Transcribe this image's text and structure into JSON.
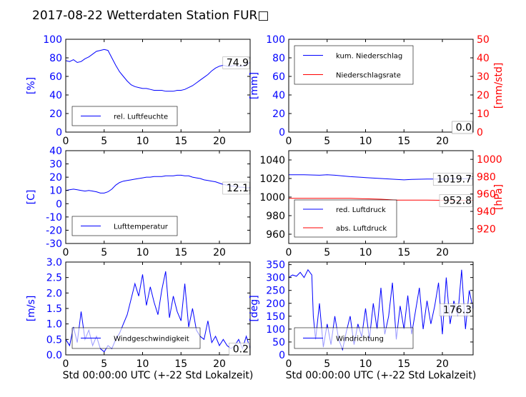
{
  "title": "2017-08-22 Wetterdaten Station FUR□",
  "colors": {
    "primary": "#0000ff",
    "secondary": "#ff0000",
    "axis": "#000000"
  },
  "chart_data": [
    {
      "id": "humidity",
      "type": "line",
      "ylabel": "[%]",
      "xlim": [
        0,
        24
      ],
      "ylim": [
        0,
        100
      ],
      "xticks": [
        0,
        5,
        10,
        15,
        20
      ],
      "yticks": [
        0,
        20,
        40,
        60,
        80,
        100
      ],
      "legend": {
        "position": "lower-left",
        "entries": [
          "rel. Luftfeuchte"
        ]
      },
      "last_value_label": "74.9",
      "series": [
        {
          "name": "rel. Luftfeuchte",
          "color": "#0000ff",
          "x": [
            0,
            0.5,
            1,
            1.5,
            2,
            2.5,
            3,
            3.5,
            4,
            4.5,
            5,
            5.5,
            6,
            6.5,
            7,
            7.5,
            8,
            8.5,
            9,
            9.5,
            10,
            10.5,
            11,
            11.5,
            12,
            12.5,
            13,
            13.5,
            14,
            14.5,
            15,
            15.5,
            16,
            16.5,
            17,
            17.5,
            18,
            18.5,
            19,
            19.5,
            20,
            20.5,
            21,
            21.5,
            22,
            22.5,
            23,
            23.5,
            24
          ],
          "y": [
            77,
            76,
            78,
            75,
            76,
            79,
            81,
            84,
            87,
            88,
            89,
            88,
            80,
            72,
            65,
            60,
            55,
            51,
            49,
            48,
            47,
            47,
            46,
            45,
            45,
            45,
            44,
            44,
            44,
            45,
            45,
            46,
            48,
            50,
            53,
            56,
            59,
            62,
            66,
            69,
            71,
            72,
            71,
            71,
            72,
            71,
            71,
            73,
            75
          ]
        }
      ]
    },
    {
      "id": "precipitation",
      "type": "line",
      "ylabel": "[mm]",
      "y2label": "[mm/std]",
      "xlim": [
        0,
        24
      ],
      "ylim": [
        0,
        100
      ],
      "y2lim": [
        0,
        50
      ],
      "xticks": [
        0,
        5,
        10,
        15,
        20
      ],
      "yticks": [
        0,
        20,
        40,
        60,
        80,
        100
      ],
      "y2ticks": [
        0,
        10,
        20,
        30,
        40,
        50
      ],
      "legend": {
        "position": "upper-left",
        "entries": [
          "kum. Niederschlag",
          "Niederschlagsrate"
        ]
      },
      "last_value_label": "0.0",
      "last_value_label_2": "0.0",
      "series": [
        {
          "name": "kum. Niederschlag",
          "color": "#0000ff",
          "axis": "left",
          "x": [
            0,
            24
          ],
          "y": [
            0,
            0
          ]
        },
        {
          "name": "Niederschlagsrate",
          "color": "#ff0000",
          "axis": "right",
          "x": [
            0,
            24
          ],
          "y": [
            0,
            0
          ]
        }
      ]
    },
    {
      "id": "temperature",
      "type": "line",
      "ylabel": "[C]",
      "xlim": [
        0,
        24
      ],
      "ylim": [
        -30,
        40
      ],
      "xticks": [
        0,
        5,
        10,
        15,
        20
      ],
      "yticks": [
        -30,
        -20,
        -10,
        0,
        10,
        20,
        30,
        40
      ],
      "legend": {
        "position": "lower-left",
        "entries": [
          "Lufttemperatur"
        ]
      },
      "last_value_label": "12.1",
      "series": [
        {
          "name": "Lufttemperatur",
          "color": "#0000ff",
          "x": [
            0,
            0.5,
            1,
            1.5,
            2,
            2.5,
            3,
            3.5,
            4,
            4.5,
            5,
            5.5,
            6,
            6.5,
            7,
            7.5,
            8,
            8.5,
            9,
            9.5,
            10,
            10.5,
            11,
            11.5,
            12,
            12.5,
            13,
            13.5,
            14,
            14.5,
            15,
            15.5,
            16,
            16.5,
            17,
            17.5,
            18,
            18.5,
            19,
            19.5,
            20,
            20.5,
            21,
            21.5,
            22,
            22.5,
            23,
            23.5,
            24
          ],
          "y": [
            10,
            10.5,
            11,
            10.5,
            10,
            9.5,
            10,
            9.5,
            9,
            8,
            8,
            9,
            11,
            14,
            16,
            17,
            17.5,
            18,
            18.5,
            19,
            19.5,
            20,
            20,
            20.5,
            20.5,
            20.5,
            21,
            21,
            21,
            21.5,
            21.5,
            21,
            21,
            20,
            19.5,
            19,
            18,
            17.5,
            17,
            16.5,
            15.5,
            14.5,
            14,
            13.5,
            13,
            12.5,
            12.5,
            12,
            12
          ]
        }
      ]
    },
    {
      "id": "pressure",
      "type": "line",
      "y2label": "[hPa]",
      "xlim": [
        0,
        24
      ],
      "ylim": [
        950,
        1050
      ],
      "y2lim": [
        903,
        1010
      ],
      "xticks": [
        0,
        5,
        10,
        15,
        20
      ],
      "yticks": [
        960,
        980,
        1000,
        1020,
        1040
      ],
      "y2ticks": [
        920,
        940,
        960,
        980,
        1000
      ],
      "legend": {
        "position": "lower-left",
        "entries": [
          "red. Luftdruck",
          "abs. Luftdruck"
        ]
      },
      "last_value_label": "1019.7",
      "last_value_label_2": "952.8",
      "series": [
        {
          "name": "red. Luftdruck",
          "color": "#0000ff",
          "axis": "left",
          "x": [
            0,
            2,
            4,
            5,
            6,
            8,
            10,
            12,
            14,
            15,
            16,
            18,
            20,
            22,
            24
          ],
          "y": [
            1024,
            1024,
            1023.5,
            1024,
            1023.5,
            1022,
            1021,
            1020,
            1019,
            1018.5,
            1019,
            1019.5,
            1019.5,
            1019.7,
            1019.7
          ]
        },
        {
          "name": "abs. Luftdruck",
          "color": "#ff0000",
          "axis": "right",
          "x": [
            0,
            4,
            8,
            12,
            14,
            16,
            18,
            20,
            24
          ],
          "y": [
            955,
            955,
            955,
            954,
            953,
            953,
            953,
            952.8,
            952.8
          ]
        }
      ]
    },
    {
      "id": "windspeed",
      "type": "line",
      "ylabel": "[m/s]",
      "xlabel": "Std 00:00:00 UTC (+-22 Std Lokalzeit)",
      "xlim": [
        0,
        24
      ],
      "ylim": [
        0,
        3
      ],
      "xticks": [
        0,
        5,
        10,
        15,
        20
      ],
      "yticks": [
        0.0,
        0.5,
        1.0,
        1.5,
        2.0,
        2.5,
        3.0
      ],
      "legend": {
        "position": "lower-center",
        "entries": [
          "Windgeschwindigkeit"
        ]
      },
      "last_value_label": "0.2",
      "series": [
        {
          "name": "Windgeschwindigkeit",
          "color": "#0000ff",
          "x": [
            0,
            0.5,
            1,
            1.5,
            2,
            2.5,
            3,
            3.5,
            4,
            4.5,
            5,
            5.5,
            6,
            6.5,
            7,
            7.5,
            8,
            8.5,
            9,
            9.5,
            10,
            10.5,
            11,
            11.5,
            12,
            12.5,
            13,
            13.5,
            14,
            14.5,
            15,
            15.5,
            16,
            16.5,
            17,
            17.5,
            18,
            18.5,
            19,
            19.5,
            20,
            20.5,
            21,
            21.5,
            22,
            22.5,
            23,
            23.5,
            24
          ],
          "y": [
            0.5,
            0.3,
            0.9,
            0.4,
            1.4,
            0.5,
            0.8,
            0.3,
            0.6,
            0.2,
            0.1,
            0.3,
            0.2,
            0.5,
            0.7,
            1.0,
            1.3,
            1.8,
            2.3,
            1.9,
            2.6,
            1.6,
            2.2,
            1.7,
            1.3,
            2.1,
            2.7,
            1.2,
            1.9,
            1.4,
            1.1,
            2.3,
            0.9,
            1.5,
            0.8,
            0.6,
            0.5,
            1.1,
            0.4,
            0.6,
            0.3,
            0.5,
            0.3,
            0.2,
            0.3,
            0.5,
            0.2,
            0.6,
            0.2
          ]
        }
      ]
    },
    {
      "id": "winddirection",
      "type": "line",
      "ylabel": "[deg]",
      "xlabel": "Std 00:00:00 UTC (+-22 Std Lokalzeit)",
      "xlim": [
        0,
        24
      ],
      "ylim": [
        0,
        360
      ],
      "xticks": [
        0,
        5,
        10,
        15,
        20
      ],
      "yticks": [
        0,
        50,
        100,
        150,
        200,
        250,
        300,
        350
      ],
      "legend": {
        "position": "lower-left",
        "entries": [
          "Windrichtung"
        ]
      },
      "last_value_label": "176.3",
      "series": [
        {
          "name": "Windrichtung",
          "color": "#0000ff",
          "x": [
            0,
            0.5,
            1,
            1.5,
            2,
            2.5,
            3,
            3.2,
            3.5,
            4,
            4.5,
            5,
            5.5,
            6,
            6.5,
            7,
            7.5,
            8,
            8.5,
            9,
            9.5,
            10,
            10.5,
            11,
            11.5,
            12,
            12.5,
            13,
            13.5,
            14,
            14.5,
            15,
            15.5,
            16,
            16.5,
            17,
            17.5,
            18,
            18.5,
            19,
            19.5,
            20,
            20.5,
            21,
            21.5,
            22,
            22.5,
            23,
            23.5,
            24
          ],
          "y": [
            300,
            310,
            305,
            320,
            300,
            330,
            310,
            150,
            60,
            200,
            30,
            120,
            40,
            150,
            60,
            20,
            90,
            150,
            40,
            120,
            70,
            180,
            60,
            200,
            100,
            260,
            80,
            150,
            280,
            60,
            190,
            100,
            230,
            80,
            170,
            260,
            100,
            210,
            120,
            190,
            280,
            80,
            300,
            120,
            210,
            150,
            330,
            100,
            250,
            176
          ]
        }
      ]
    }
  ]
}
